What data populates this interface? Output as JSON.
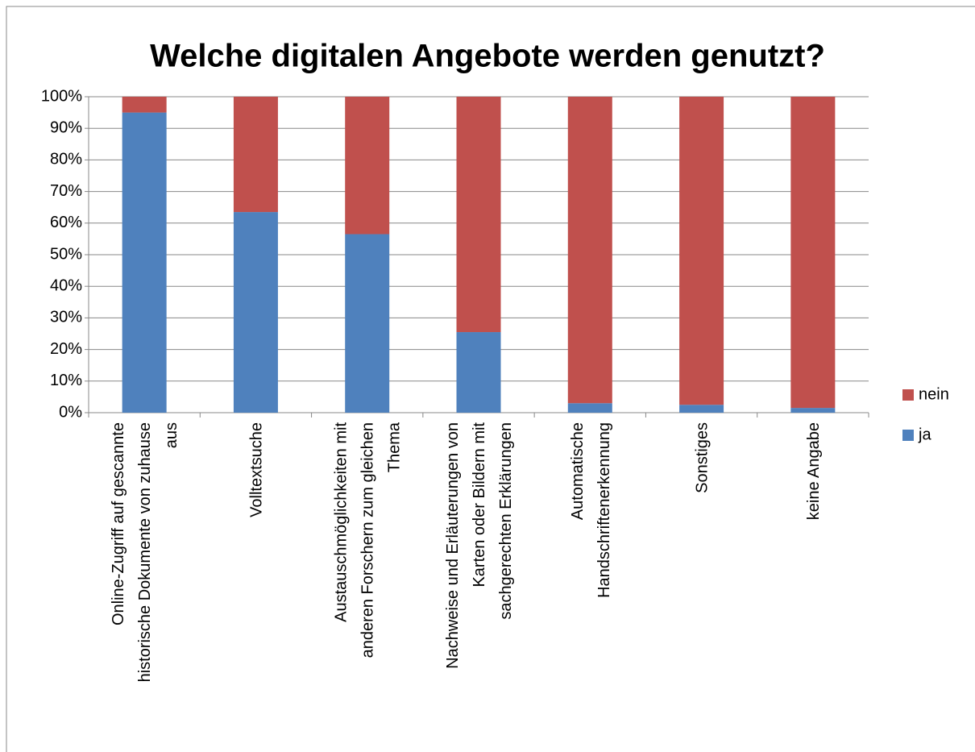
{
  "chart_data": {
    "type": "stacked_bar",
    "title": "Welche digitalen Angebote werden genutzt?",
    "categories": [
      "Online-Zugriff auf gescannte historische Dokumente von zuhause aus",
      "Volltextsuche",
      "Austauschmöglichkeiten mit anderen Forschern zum gleichen Thema",
      "Nachweise und Erläuterungen von Karten oder Bildern mit sachgerechten Erklärungen",
      "Automatische Handschriftenerkennung",
      "Sonstiges",
      "keine Angabe"
    ],
    "series": [
      {
        "name": "ja",
        "color": "#4f81bd",
        "values": [
          95,
          63.5,
          56.5,
          25.5,
          3,
          2.5,
          1.5
        ]
      },
      {
        "name": "nein",
        "color": "#c0504d",
        "values": [
          5,
          36.5,
          43.5,
          74.5,
          97,
          97.5,
          98.5
        ]
      }
    ],
    "ylim": [
      0,
      100
    ],
    "yticks": [
      {
        "value": 0,
        "label": "0%"
      },
      {
        "value": 10,
        "label": "10%"
      },
      {
        "value": 20,
        "label": "20%"
      },
      {
        "value": 30,
        "label": "30%"
      },
      {
        "value": 40,
        "label": "40%"
      },
      {
        "value": 50,
        "label": "50%"
      },
      {
        "value": 60,
        "label": "60%"
      },
      {
        "value": 70,
        "label": "70%"
      },
      {
        "value": 80,
        "label": "80%"
      },
      {
        "value": 90,
        "label": "90%"
      },
      {
        "value": 100,
        "label": "100%"
      }
    ],
    "grid": true,
    "legend": "right"
  }
}
